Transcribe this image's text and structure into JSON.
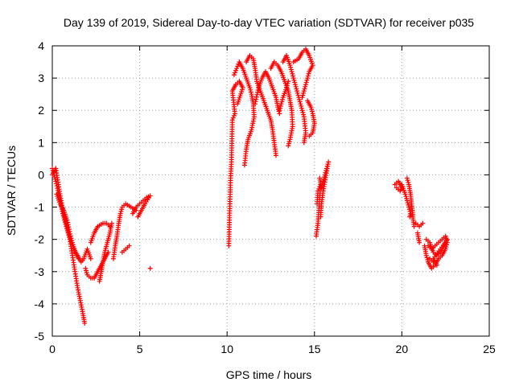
{
  "chart_data": {
    "type": "scatter",
    "title": "Day 139 of 2019, Sidereal Day-to-day VTEC variation (SDTVAR) for receiver p035",
    "xlabel": "GPS time / hours",
    "ylabel": "SDTVAR / TECUs",
    "xlim": [
      0,
      25
    ],
    "ylim": [
      -5,
      4
    ],
    "xticks": [
      0,
      5,
      10,
      15,
      20,
      25
    ],
    "yticks": [
      -5,
      -4,
      -3,
      -2,
      -1,
      0,
      1,
      2,
      3,
      4
    ],
    "grid": true,
    "marker": "+",
    "color": "#ff0000",
    "series": [
      {
        "name": "SDTVAR p035",
        "segments": [
          [
            [
              0.0,
              0.2
            ],
            [
              0.2,
              -0.2
            ],
            [
              0.4,
              -0.7
            ],
            [
              0.6,
              -1.2
            ],
            [
              0.8,
              -1.6
            ],
            [
              1.0,
              -2.0
            ],
            [
              1.15,
              -2.5
            ],
            [
              1.3,
              -3.0
            ],
            [
              1.45,
              -3.5
            ],
            [
              1.6,
              -3.9
            ],
            [
              1.75,
              -4.3
            ],
            [
              1.85,
              -4.6
            ]
          ],
          [
            [
              0.0,
              0.0
            ],
            [
              0.2,
              0.2
            ],
            [
              0.35,
              -0.3
            ],
            [
              0.5,
              -0.8
            ],
            [
              0.7,
              -1.3
            ],
            [
              0.9,
              -1.7
            ],
            [
              1.1,
              -2.1
            ],
            [
              1.3,
              -2.4
            ],
            [
              1.5,
              -2.6
            ]
          ],
          [
            [
              0.25,
              -0.6
            ],
            [
              0.45,
              -0.9
            ],
            [
              0.65,
              -1.1
            ],
            [
              0.85,
              -1.4
            ],
            [
              1.05,
              -1.9
            ],
            [
              1.25,
              -2.3
            ],
            [
              1.45,
              -2.5
            ],
            [
              1.65,
              -2.7
            ],
            [
              1.8,
              -2.6
            ],
            [
              2.0,
              -2.3
            ],
            [
              2.2,
              -2.6
            ]
          ],
          [
            [
              1.9,
              -2.9
            ],
            [
              2.0,
              -3.1
            ],
            [
              2.2,
              -3.2
            ],
            [
              2.4,
              -3.2
            ],
            [
              2.6,
              -3.0
            ],
            [
              2.8,
              -2.8
            ],
            [
              3.0,
              -2.6
            ],
            [
              3.2,
              -2.4
            ]
          ],
          [
            [
              2.7,
              -3.3
            ],
            [
              2.8,
              -3.0
            ],
            [
              2.9,
              -2.7
            ],
            [
              3.0,
              -2.4
            ],
            [
              3.15,
              -2.1
            ],
            [
              3.3,
              -1.8
            ],
            [
              3.4,
              -1.5
            ]
          ],
          [
            [
              2.2,
              -2.1
            ],
            [
              2.4,
              -1.8
            ],
            [
              2.6,
              -1.6
            ],
            [
              2.9,
              -1.5
            ],
            [
              3.1,
              -1.5
            ],
            [
              3.3,
              -1.6
            ]
          ],
          [
            [
              3.5,
              -2.6
            ],
            [
              3.6,
              -2.2
            ],
            [
              3.7,
              -1.9
            ],
            [
              3.8,
              -1.5
            ],
            [
              3.9,
              -1.2
            ],
            [
              4.0,
              -1.0
            ],
            [
              4.2,
              -0.9
            ],
            [
              4.5,
              -1.0
            ],
            [
              4.8,
              -1.1
            ]
          ],
          [
            [
              4.0,
              -2.4
            ],
            [
              4.2,
              -2.3
            ],
            [
              4.4,
              -2.2
            ]
          ],
          [
            [
              4.6,
              -1.2
            ],
            [
              4.8,
              -1.0
            ],
            [
              5.0,
              -0.9
            ],
            [
              5.2,
              -0.8
            ],
            [
              5.4,
              -0.7
            ],
            [
              5.6,
              -0.65
            ],
            [
              5.3,
              -0.9
            ],
            [
              5.1,
              -1.1
            ],
            [
              4.9,
              -1.3
            ]
          ],
          [
            [
              5.6,
              -2.9
            ]
          ],
          [
            [
              10.1,
              -2.2
            ],
            [
              10.2,
              -0.1
            ],
            [
              10.25,
              0.4
            ],
            [
              10.3,
              1.7
            ],
            [
              10.45,
              1.9
            ],
            [
              10.3,
              2.6
            ],
            [
              10.5,
              2.8
            ],
            [
              10.7,
              2.9
            ],
            [
              10.9,
              2.7
            ],
            [
              10.6,
              2.2
            ]
          ],
          [
            [
              10.4,
              3.1
            ],
            [
              10.7,
              3.5
            ],
            [
              10.9,
              3.3
            ],
            [
              11.1,
              3.0
            ],
            [
              11.3,
              2.7
            ],
            [
              11.4,
              2.5
            ],
            [
              11.5,
              2.2
            ],
            [
              11.55,
              1.8
            ],
            [
              11.4,
              1.4
            ],
            [
              11.2,
              1.1
            ],
            [
              11.1,
              0.8
            ],
            [
              11.0,
              0.3
            ]
          ],
          [
            [
              11.1,
              3.5
            ],
            [
              11.3,
              3.7
            ],
            [
              11.5,
              3.6
            ],
            [
              11.6,
              3.3
            ],
            [
              11.7,
              2.9
            ],
            [
              11.9,
              2.6
            ],
            [
              12.1,
              2.3
            ],
            [
              12.3,
              2.0
            ],
            [
              12.5,
              1.7
            ],
            [
              12.6,
              1.4
            ],
            [
              12.7,
              1.0
            ],
            [
              12.8,
              0.6
            ]
          ],
          [
            [
              11.6,
              2.2
            ],
            [
              11.8,
              2.7
            ],
            [
              12.0,
              3.0
            ],
            [
              12.2,
              3.2
            ],
            [
              12.4,
              3.0
            ],
            [
              12.6,
              2.7
            ],
            [
              12.8,
              2.4
            ],
            [
              12.9,
              2.1
            ],
            [
              13.0,
              1.9
            ]
          ],
          [
            [
              12.5,
              3.3
            ],
            [
              12.7,
              3.5
            ],
            [
              12.9,
              3.4
            ],
            [
              13.1,
              3.2
            ],
            [
              13.3,
              2.9
            ],
            [
              13.5,
              2.6
            ],
            [
              13.6,
              2.3
            ],
            [
              13.7,
              2.0
            ],
            [
              13.75,
              1.5
            ],
            [
              13.6,
              1.1
            ],
            [
              13.5,
              0.9
            ]
          ],
          [
            [
              13.2,
              3.5
            ],
            [
              13.4,
              3.7
            ],
            [
              13.6,
              3.4
            ],
            [
              13.8,
              3.0
            ],
            [
              14.0,
              2.6
            ],
            [
              14.2,
              2.2
            ],
            [
              14.4,
              1.8
            ],
            [
              14.5,
              1.3
            ],
            [
              14.4,
              1.0
            ]
          ],
          [
            [
              13.8,
              3.5
            ],
            [
              14.1,
              3.6
            ],
            [
              14.3,
              3.8
            ],
            [
              14.5,
              3.9
            ],
            [
              14.7,
              3.7
            ],
            [
              14.9,
              3.4
            ],
            [
              14.7,
              3.2
            ],
            [
              14.5,
              2.8
            ],
            [
              14.3,
              2.4
            ]
          ],
          [
            [
              13.0,
              2.0
            ],
            [
              13.2,
              2.4
            ],
            [
              13.4,
              2.7
            ],
            [
              13.5,
              2.9
            ]
          ],
          [
            [
              14.6,
              2.3
            ],
            [
              14.8,
              2.1
            ],
            [
              14.9,
              1.9
            ],
            [
              15.0,
              1.6
            ],
            [
              14.9,
              1.3
            ],
            [
              14.7,
              1.2
            ]
          ],
          [
            [
              15.1,
              -1.9
            ],
            [
              15.2,
              -1.5
            ],
            [
              15.25,
              -1.1
            ],
            [
              15.3,
              -0.7
            ],
            [
              15.35,
              -0.3
            ],
            [
              15.2,
              -0.5
            ],
            [
              15.15,
              -0.9
            ]
          ],
          [
            [
              15.3,
              -0.1
            ],
            [
              15.4,
              -0.4
            ],
            [
              15.5,
              -0.2
            ],
            [
              15.6,
              0.0
            ],
            [
              15.7,
              0.2
            ],
            [
              15.8,
              0.4
            ],
            [
              15.5,
              -0.5
            ],
            [
              15.4,
              -0.9
            ],
            [
              15.35,
              -1.3
            ]
          ],
          [
            [
              19.6,
              -0.3
            ],
            [
              19.8,
              -0.2
            ],
            [
              20.0,
              -0.4
            ],
            [
              19.9,
              -0.5
            ],
            [
              19.7,
              -0.4
            ]
          ],
          [
            [
              20.0,
              -0.3
            ],
            [
              20.2,
              -0.6
            ],
            [
              20.3,
              -0.8
            ],
            [
              20.4,
              -1.0
            ],
            [
              20.5,
              -1.2
            ],
            [
              20.45,
              -1.3
            ]
          ],
          [
            [
              20.3,
              -0.1
            ],
            [
              20.4,
              -0.3
            ],
            [
              20.5,
              -0.6
            ],
            [
              20.55,
              -0.9
            ],
            [
              20.6,
              -1.1
            ],
            [
              20.65,
              -1.4
            ],
            [
              20.7,
              -1.6
            ]
          ],
          [
            [
              20.8,
              -1.5
            ],
            [
              21.0,
              -1.6
            ],
            [
              21.2,
              -1.5
            ]
          ],
          [
            [
              20.9,
              -1.8
            ],
            [
              21.0,
              -2.1
            ]
          ],
          [
            [
              21.3,
              -2.2
            ],
            [
              21.4,
              -2.5
            ],
            [
              21.5,
              -2.7
            ],
            [
              21.7,
              -2.9
            ],
            [
              21.9,
              -2.8
            ],
            [
              22.1,
              -2.6
            ],
            [
              22.3,
              -2.5
            ],
            [
              22.5,
              -2.3
            ],
            [
              22.6,
              -2.1
            ],
            [
              22.5,
              -1.9
            ],
            [
              22.3,
              -2.0
            ],
            [
              22.1,
              -2.1
            ],
            [
              21.9,
              -2.2
            ],
            [
              21.7,
              -2.3
            ],
            [
              21.5,
              -2.2
            ]
          ],
          [
            [
              21.4,
              -2.0
            ],
            [
              21.6,
              -2.1
            ],
            [
              21.8,
              -2.4
            ],
            [
              22.0,
              -2.5
            ],
            [
              22.2,
              -2.4
            ],
            [
              22.4,
              -2.2
            ],
            [
              22.6,
              -2.0
            ],
            [
              21.8,
              -2.6
            ],
            [
              22.0,
              -2.8
            ],
            [
              21.6,
              -2.6
            ]
          ]
        ]
      }
    ]
  }
}
